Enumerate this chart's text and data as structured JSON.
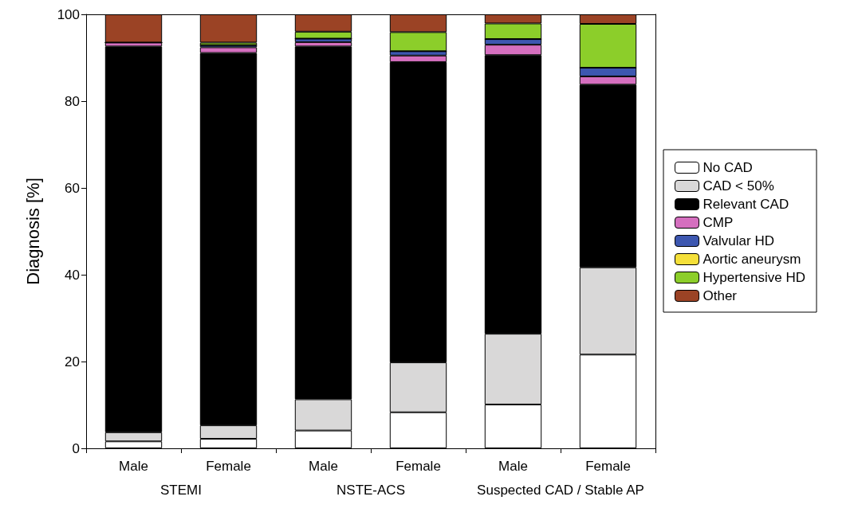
{
  "chart_data": {
    "type": "bar",
    "stacked": true,
    "ylabel": "Diagnosis [%]",
    "categories": [
      "Male",
      "Female",
      "Male",
      "Female",
      "Male",
      "Female"
    ],
    "annotations": [
      "STEMI",
      "NSTE-ACS",
      "Suspected CAD / Stable AP"
    ],
    "ylim": [
      0,
      100
    ],
    "yticks": [
      0,
      20,
      40,
      60,
      80,
      100
    ],
    "grid": false,
    "legend": "right",
    "series": [
      {
        "name": "No CAD",
        "color": "#ffffff",
        "values": [
          1.6,
          2.2,
          4.1,
          8.3,
          10.1,
          21.6
        ]
      },
      {
        "name": "CAD < 50%",
        "color": "#d9d8d8",
        "values": [
          2.1,
          3.1,
          7.2,
          11.5,
          16.3,
          20.1
        ]
      },
      {
        "name": "Relevant CAD",
        "color": "#000000",
        "values": [
          88.9,
          85.8,
          81.3,
          69.2,
          64.2,
          42.1
        ]
      },
      {
        "name": "CMP",
        "color": "#d56fbf",
        "values": [
          0.9,
          1.3,
          1.0,
          1.5,
          2.4,
          1.9
        ]
      },
      {
        "name": "Valvular HD",
        "color": "#3d57b0",
        "values": [
          0,
          0.5,
          0.8,
          1.0,
          1.3,
          2.0
        ]
      },
      {
        "name": "Aortic aneurysm",
        "color": "#f5e03a",
        "values": [
          0,
          0,
          0,
          0,
          0,
          0
        ]
      },
      {
        "name": "Hypertensive HD",
        "color": "#8cce2a",
        "values": [
          0,
          0.6,
          1.6,
          4.4,
          3.6,
          10.1
        ]
      },
      {
        "name": "Other",
        "color": "#9b4325",
        "values": [
          6.5,
          6.5,
          4.0,
          4.1,
          2.1,
          2.2
        ]
      }
    ]
  }
}
